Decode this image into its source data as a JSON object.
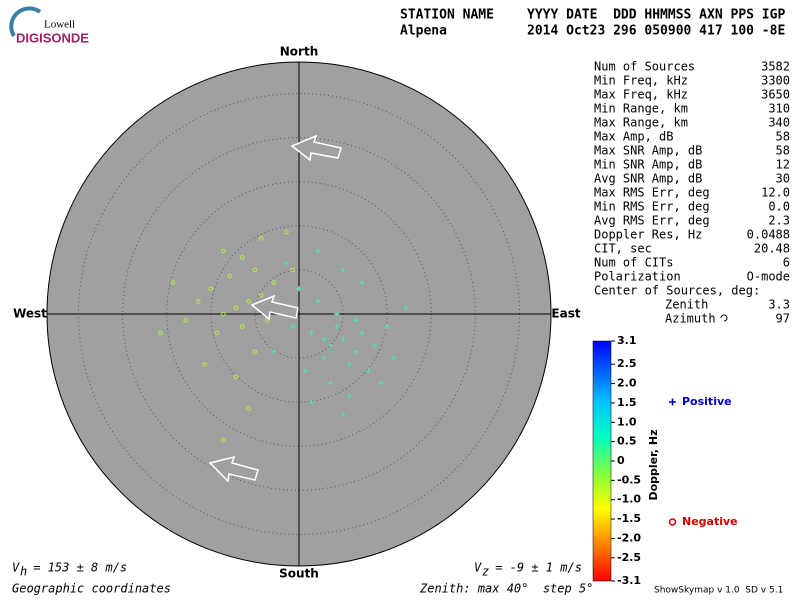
{
  "header": {
    "logo_top": "Lowell",
    "logo_bottom": "DIGISONDE",
    "labels_1": "STATION NAME",
    "labels_2": "YYYY DATE  DDD HHMMSS AXN PPS IGP",
    "station": "Alpena",
    "values": "2014 Oct23 296 050900 417 100 -8E"
  },
  "stats": [
    [
      "Num of Sources",
      "3582"
    ],
    [
      "Min Freq, kHz",
      "3300"
    ],
    [
      "Max Freq, kHz",
      "3650"
    ],
    [
      "Min Range, km",
      "310"
    ],
    [
      "Max Range, km",
      "340"
    ],
    [
      "Max Amp, dB",
      "58"
    ],
    [
      "Max SNR Amp, dB",
      "58"
    ],
    [
      "Min SNR Amp, dB",
      "12"
    ],
    [
      "Avg SNR Amp, dB",
      "30"
    ],
    [
      "Max RMS Err, deg",
      "12.0"
    ],
    [
      "Min RMS Err, deg",
      "0.0"
    ],
    [
      "Avg RMS Err, deg",
      "2.3"
    ],
    [
      "Doppler Res, Hz",
      "0.0488"
    ],
    [
      "CIT, sec",
      "20.48"
    ],
    [
      "Num of CITs",
      "6"
    ],
    [
      "Polarization",
      "O-mode"
    ]
  ],
  "center": {
    "title": "Center of Sources, deg:",
    "zenith_label": "Zenith",
    "zenith": "3.3",
    "azimuth_label": "Azimuth",
    "azimuth": "97"
  },
  "footer": {
    "vh_sym": "V",
    "vh_sub": "h",
    "vh": " = 153 ± 8 m/s",
    "vz_sym": "V",
    "vz_sub": "z",
    "vz": " = -9 ± 1 m/s",
    "coords": "Geographic coordinates",
    "zenith": "Zenith: max 40°  step 5°",
    "version": "ShowSkymap v 1.0  SD v 5.1"
  },
  "chart_data": {
    "type": "scatter",
    "directions": {
      "north": "North",
      "south": "South",
      "east": "East",
      "west": "West"
    },
    "xlim": [
      -40,
      40
    ],
    "ylim": [
      -40,
      40
    ],
    "rticks": [
      7,
      14,
      21,
      28,
      35
    ],
    "series": [
      {
        "name": "Positive",
        "color": "#40f0b0",
        "x": [
          2,
          5,
          7,
          4,
          8,
          10,
          6,
          3,
          9,
          12,
          1,
          5,
          11,
          14,
          0,
          -2,
          3,
          7,
          15,
          2,
          8,
          -4,
          6,
          4,
          9,
          13,
          7,
          17,
          -1,
          10
        ],
        "y": [
          -3,
          -5,
          -4,
          -7,
          -8,
          -3,
          0,
          2,
          -6,
          -5,
          -9,
          -11,
          -9,
          -2,
          4,
          8,
          10,
          7,
          -7,
          -14,
          -13,
          -6,
          -2,
          -4,
          -1,
          -11,
          -16,
          1,
          -2,
          5
        ]
      },
      {
        "name": "Negative",
        "color": "#b0f040",
        "x": [
          -10,
          -8,
          -12,
          -9,
          -6,
          -14,
          -11,
          -7,
          -5,
          -13,
          -16,
          -9,
          -4,
          -18,
          -7,
          -12,
          -3,
          -15,
          -6,
          -20,
          -10,
          -2,
          -22,
          -1,
          -8,
          -12
        ],
        "y": [
          1,
          2,
          0,
          -2,
          3,
          4,
          6,
          7,
          -1,
          -3,
          2,
          9,
          5,
          -1,
          -6,
          10,
          1,
          -8,
          12,
          5,
          -10,
          13,
          -3,
          7,
          -15,
          -20
        ]
      }
    ],
    "colorbar": {
      "label": "Doppler, Hz",
      "lim": [
        -3.1,
        3.1
      ],
      "ticks": [
        3.1,
        2.5,
        {
          "value": 2,
          "label": "2.0"
        },
        1.5,
        {
          "value": 1,
          "label": "1.0"
        },
        0.5,
        0,
        -0.5,
        {
          "value": -1,
          "label": "-1.0"
        },
        -1.5,
        {
          "value": -2,
          "label": "-2.0"
        },
        -2.5,
        -3.1
      ]
    }
  }
}
